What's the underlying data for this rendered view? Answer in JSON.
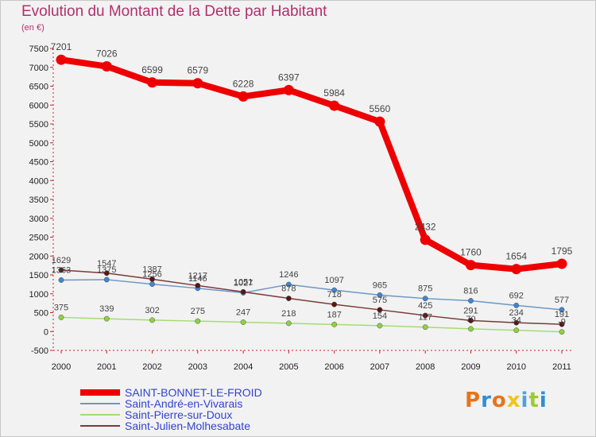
{
  "header": {
    "title": "Evolution du Montant de la Dette par Habitant",
    "subtitle": "(en €)"
  },
  "logo": {
    "text": "Proxiti",
    "colors": [
      "#e8731a",
      "#2d8fd6",
      "#e8731a",
      "#f0c419",
      "#4aa3e0",
      "#9c3",
      "#2d8fd6"
    ]
  },
  "chart_data": {
    "type": "line",
    "title": "Evolution du Montant de la Dette par Habitant",
    "ylabel": "(en €)",
    "x": [
      "2000",
      "2001",
      "2002",
      "2003",
      "2004",
      "2005",
      "2006",
      "2007",
      "2008",
      "2009",
      "2010",
      "2011"
    ],
    "ylim": [
      -500,
      7500
    ],
    "yticks": [
      -500,
      0,
      500,
      1000,
      1500,
      2000,
      2500,
      3000,
      3500,
      4000,
      4500,
      5000,
      5500,
      6000,
      6500,
      7000,
      7500
    ],
    "grid": false,
    "legend_position": "bottom-left",
    "series": [
      {
        "name": "SAINT-BONNET-LE-FROID",
        "color": "#ee0000",
        "marker_fill": "#ee0000",
        "width": 8,
        "main": true,
        "values": [
          7201,
          7026,
          6599,
          6579,
          6228,
          6397,
          5984,
          5560,
          2432,
          1760,
          1654,
          1795
        ]
      },
      {
        "name": "Saint-André-en-Vivarais",
        "color": "#6c98c4",
        "marker_fill": "#3f86cf",
        "width": 1.5,
        "main": false,
        "values": [
          1363,
          1375,
          1256,
          1146,
          1027,
          1246,
          1097,
          965,
          875,
          816,
          692,
          577
        ]
      },
      {
        "name": "Saint-Pierre-sur-Doux",
        "color": "#a4dc70",
        "marker_fill": "#8ed13f",
        "width": 1.5,
        "main": false,
        "values": [
          375,
          339,
          302,
          275,
          247,
          218,
          187,
          154,
          117,
          70,
          34,
          -9
        ]
      },
      {
        "name": "Saint-Julien-Molhesabate",
        "color": "#7a3a3a",
        "marker_fill": "#5a1414",
        "width": 1.5,
        "main": false,
        "values": [
          1629,
          1547,
          1387,
          1217,
          1051,
          878,
          718,
          575,
          425,
          291,
          234,
          191
        ]
      }
    ]
  }
}
